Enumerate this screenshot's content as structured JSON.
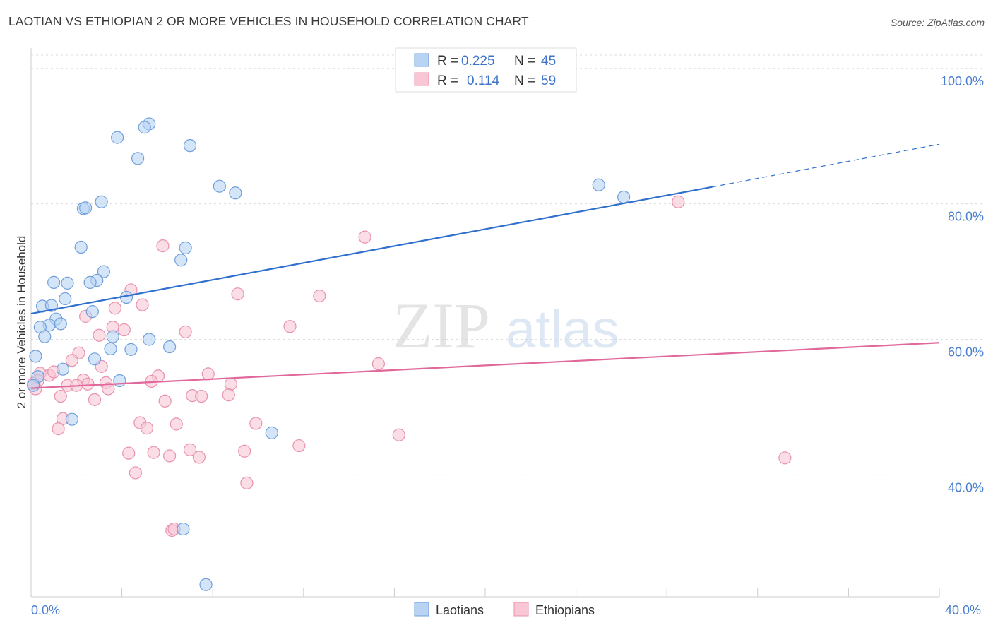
{
  "title": "LAOTIAN VS ETHIOPIAN 2 OR MORE VEHICLES IN HOUSEHOLD CORRELATION CHART",
  "source": "Source: ZipAtlas.com",
  "watermark": {
    "zip": "ZIP",
    "atlas": "atlas"
  },
  "colors": {
    "laotian_fill": "#b9d3f3",
    "laotian_stroke": "#6f9fdc",
    "laotian_line": "#2f6fce",
    "ethiopian_fill": "#f9c6d6",
    "ethiopian_stroke": "#e992ae",
    "ethiopian_line": "#e0689a",
    "tick_text": "#4a7fcf",
    "grid": "#dddddd"
  },
  "legend": {
    "r_label": "R =",
    "n_label": "N =",
    "rows": [
      {
        "series": "Laotians",
        "r": "0.225",
        "n": "45"
      },
      {
        "series": "Ethiopians",
        "r": "0.114",
        "n": "59"
      }
    ]
  },
  "chart_data": {
    "type": "scatter",
    "title": "LAOTIAN VS ETHIOPIAN 2 OR MORE VEHICLES IN HOUSEHOLD CORRELATION CHART",
    "xlabel": "",
    "ylabel": "2 or more Vehicles in Household",
    "xlim": [
      0,
      40
    ],
    "ylim": [
      22,
      103
    ],
    "x_tick_labels": [
      "0.0%",
      "40.0%"
    ],
    "y_ticks": [
      40,
      60,
      80,
      100
    ],
    "y_tick_labels": [
      "40.0%",
      "60.0%",
      "80.0%",
      "100.0%"
    ],
    "grid": "horizontal dashed",
    "legend_position": "top-center",
    "series": [
      {
        "name": "Laotians",
        "trend": {
          "x0": 0,
          "y0": 63.8,
          "x1": 30.0,
          "y1": 82.5,
          "dashed_to_x": 40,
          "dashed_to_y": 88.8
        },
        "points": [
          {
            "x": 5.2,
            "y": 91.8
          },
          {
            "x": 5.0,
            "y": 91.3
          },
          {
            "x": 3.8,
            "y": 89.8
          },
          {
            "x": 7.0,
            "y": 88.6
          },
          {
            "x": 4.7,
            "y": 86.7
          },
          {
            "x": 8.3,
            "y": 82.6
          },
          {
            "x": 9.0,
            "y": 81.6
          },
          {
            "x": 3.1,
            "y": 80.3
          },
          {
            "x": 2.3,
            "y": 79.3
          },
          {
            "x": 2.4,
            "y": 79.4
          },
          {
            "x": 2.2,
            "y": 73.6
          },
          {
            "x": 6.8,
            "y": 73.5
          },
          {
            "x": 6.6,
            "y": 71.7
          },
          {
            "x": 3.2,
            "y": 70.0
          },
          {
            "x": 2.9,
            "y": 68.7
          },
          {
            "x": 1.0,
            "y": 68.4
          },
          {
            "x": 1.6,
            "y": 68.3
          },
          {
            "x": 2.6,
            "y": 68.4
          },
          {
            "x": 4.2,
            "y": 66.2
          },
          {
            "x": 1.5,
            "y": 66.0
          },
          {
            "x": 0.5,
            "y": 64.9
          },
          {
            "x": 0.9,
            "y": 65.0
          },
          {
            "x": 2.7,
            "y": 64.1
          },
          {
            "x": 1.1,
            "y": 63.0
          },
          {
            "x": 0.8,
            "y": 62.1
          },
          {
            "x": 1.3,
            "y": 62.3
          },
          {
            "x": 0.4,
            "y": 61.8
          },
          {
            "x": 0.6,
            "y": 60.4
          },
          {
            "x": 3.6,
            "y": 60.4
          },
          {
            "x": 5.2,
            "y": 60.0
          },
          {
            "x": 6.1,
            "y": 58.9
          },
          {
            "x": 3.5,
            "y": 58.6
          },
          {
            "x": 4.4,
            "y": 58.5
          },
          {
            "x": 0.2,
            "y": 57.5
          },
          {
            "x": 2.8,
            "y": 57.1
          },
          {
            "x": 1.4,
            "y": 55.6
          },
          {
            "x": 0.3,
            "y": 54.5
          },
          {
            "x": 3.9,
            "y": 53.9
          },
          {
            "x": 0.1,
            "y": 53.2
          },
          {
            "x": 1.8,
            "y": 48.2
          },
          {
            "x": 10.6,
            "y": 46.2
          },
          {
            "x": 6.7,
            "y": 32.0
          },
          {
            "x": 7.7,
            "y": 23.8
          },
          {
            "x": 25.0,
            "y": 82.8
          },
          {
            "x": 26.1,
            "y": 81.0
          }
        ]
      },
      {
        "name": "Ethiopians",
        "trend": {
          "x0": 0,
          "y0": 52.8,
          "x1": 40,
          "y1": 59.5
        },
        "points": [
          {
            "x": 28.5,
            "y": 80.3
          },
          {
            "x": 14.7,
            "y": 75.1
          },
          {
            "x": 5.8,
            "y": 73.8
          },
          {
            "x": 4.4,
            "y": 67.3
          },
          {
            "x": 9.1,
            "y": 66.7
          },
          {
            "x": 12.7,
            "y": 66.4
          },
          {
            "x": 4.9,
            "y": 65.1
          },
          {
            "x": 3.7,
            "y": 64.6
          },
          {
            "x": 2.4,
            "y": 63.4
          },
          {
            "x": 3.6,
            "y": 61.8
          },
          {
            "x": 11.4,
            "y": 61.9
          },
          {
            "x": 4.1,
            "y": 61.4
          },
          {
            "x": 6.8,
            "y": 61.1
          },
          {
            "x": 3.0,
            "y": 60.6
          },
          {
            "x": 2.1,
            "y": 58.0
          },
          {
            "x": 1.8,
            "y": 56.9
          },
          {
            "x": 3.1,
            "y": 56.0
          },
          {
            "x": 15.3,
            "y": 56.4
          },
          {
            "x": 0.4,
            "y": 55.0
          },
          {
            "x": 0.8,
            "y": 54.7
          },
          {
            "x": 1.0,
            "y": 55.2
          },
          {
            "x": 7.8,
            "y": 54.9
          },
          {
            "x": 5.6,
            "y": 54.6
          },
          {
            "x": 0.3,
            "y": 53.9
          },
          {
            "x": 2.3,
            "y": 54.0
          },
          {
            "x": 2.5,
            "y": 53.4
          },
          {
            "x": 3.3,
            "y": 53.6
          },
          {
            "x": 5.3,
            "y": 53.8
          },
          {
            "x": 8.8,
            "y": 53.4
          },
          {
            "x": 1.6,
            "y": 53.2
          },
          {
            "x": 2.0,
            "y": 53.2
          },
          {
            "x": 3.4,
            "y": 52.7
          },
          {
            "x": 0.2,
            "y": 52.7
          },
          {
            "x": 1.3,
            "y": 51.6
          },
          {
            "x": 7.1,
            "y": 51.7
          },
          {
            "x": 7.5,
            "y": 51.6
          },
          {
            "x": 8.7,
            "y": 51.8
          },
          {
            "x": 2.8,
            "y": 51.1
          },
          {
            "x": 5.9,
            "y": 50.9
          },
          {
            "x": 1.4,
            "y": 48.3
          },
          {
            "x": 4.8,
            "y": 47.7
          },
          {
            "x": 6.4,
            "y": 47.5
          },
          {
            "x": 9.9,
            "y": 47.6
          },
          {
            "x": 1.2,
            "y": 46.8
          },
          {
            "x": 5.1,
            "y": 46.9
          },
          {
            "x": 16.2,
            "y": 45.9
          },
          {
            "x": 11.8,
            "y": 44.3
          },
          {
            "x": 7.0,
            "y": 43.7
          },
          {
            "x": 9.4,
            "y": 43.5
          },
          {
            "x": 4.3,
            "y": 43.2
          },
          {
            "x": 5.4,
            "y": 43.3
          },
          {
            "x": 6.1,
            "y": 42.8
          },
          {
            "x": 7.4,
            "y": 42.6
          },
          {
            "x": 33.2,
            "y": 42.5
          },
          {
            "x": 4.6,
            "y": 40.3
          },
          {
            "x": 9.5,
            "y": 38.8
          },
          {
            "x": 6.2,
            "y": 31.8
          },
          {
            "x": 6.3,
            "y": 32.0
          },
          {
            "x": 0.1,
            "y": 53.5
          }
        ]
      }
    ]
  }
}
